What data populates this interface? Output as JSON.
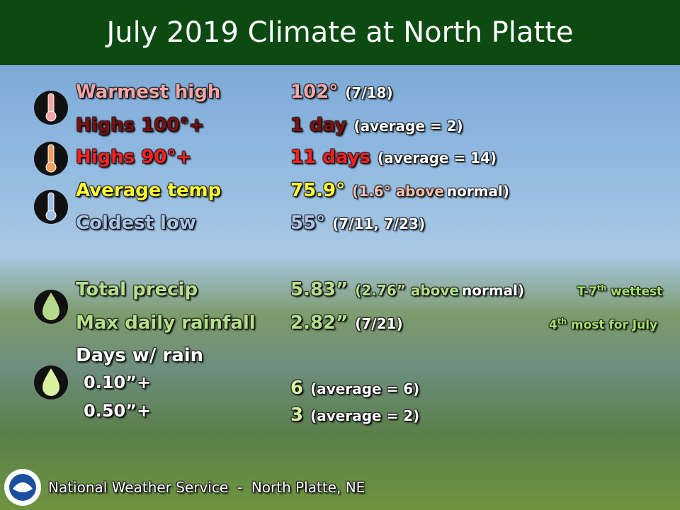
{
  "title": "July 2019 Climate at North Platte",
  "temperature": [
    {
      "label": "Warmest high",
      "value": "102°",
      "note": "(7/18)"
    },
    {
      "label": "Highs 100°+",
      "value": "1 day",
      "note": "(average = 2)"
    },
    {
      "label": "Highs 90°+",
      "value": "11 days",
      "note": "(average = 14)"
    },
    {
      "label": "Average temp",
      "value": "75.9°",
      "note_parts": [
        "(1.6° above",
        "normal)"
      ]
    },
    {
      "label": "Coldest low",
      "value": "55°",
      "note": "(7/11, 7/23)"
    }
  ],
  "precip": [
    {
      "label": "Total precip",
      "value": "5.83”",
      "note_parts": [
        "(2.76” above",
        "normal)"
      ],
      "rank": [
        "T-7",
        "th",
        " wettest"
      ]
    },
    {
      "label": "Max daily rainfall",
      "value": "2.82”",
      "note": "(7/21)",
      "rank": [
        "4",
        "th",
        " most for July"
      ]
    }
  ],
  "rain_days": {
    "label": "Days w/ rain",
    "rows": [
      {
        "threshold": "0.10”+",
        "value": "6",
        "note": "(average = 6)"
      },
      {
        "threshold": "0.50”+",
        "value": "3",
        "note": "(average = 2)"
      }
    ]
  },
  "footer": "National Weather Service  -  North Platte, NE"
}
